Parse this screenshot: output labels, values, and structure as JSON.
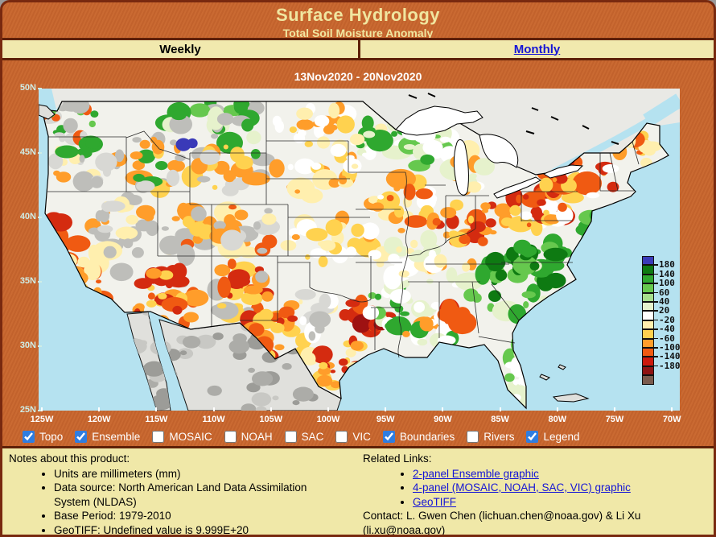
{
  "header": {
    "title": "Surface Hydrology",
    "subtitle": "Total Soil Moisture Anomaly"
  },
  "tabs": [
    {
      "label": "Weekly",
      "active": true
    },
    {
      "label": "Monthly",
      "active": false
    }
  ],
  "date_range": "13Nov2020 - 20Nov2020",
  "map": {
    "lat_labels": [
      "50N",
      "45N",
      "40N",
      "35N",
      "30N",
      "25N"
    ],
    "lon_labels": [
      "125W",
      "120W",
      "115W",
      "110W",
      "105W",
      "100W",
      "95W",
      "90W",
      "85W",
      "80W",
      "75W",
      "70W"
    ]
  },
  "legend": {
    "labels": [
      "180",
      "140",
      "100",
      "60",
      "40",
      "20",
      "-20",
      "-40",
      "-60",
      "-100",
      "-140",
      "-180"
    ],
    "colors": [
      "#3A3AB8",
      "#0E7A12",
      "#2FA82F",
      "#66C84E",
      "#A6DE8C",
      "#E6F2CC",
      "#FFFFFF",
      "#FFEFAE",
      "#FFD24F",
      "#FF9D2A",
      "#F05A12",
      "#CC1A0E",
      "#8E1414",
      "#7A5B4E"
    ]
  },
  "controls": [
    {
      "label": "Topo",
      "checked": true
    },
    {
      "label": "Ensemble",
      "checked": true
    },
    {
      "label": "MOSAIC",
      "checked": false
    },
    {
      "label": "NOAH",
      "checked": false
    },
    {
      "label": "SAC",
      "checked": false
    },
    {
      "label": "VIC",
      "checked": false
    },
    {
      "label": "Boundaries",
      "checked": true
    },
    {
      "label": "Rivers",
      "checked": false
    },
    {
      "label": "Legend",
      "checked": true
    }
  ],
  "notes": {
    "heading": "Notes about this product:",
    "items": [
      "Units are millimeters (mm)",
      "Data source: North American Land Data Assimilation System (NLDAS)",
      "Base Period: 1979-2010",
      "GeoTIFF: Undefined value is 9.999E+20"
    ]
  },
  "related": {
    "heading": "Related Links:",
    "links": [
      "2-panel Ensemble graphic",
      "4-panel (MOSAIC, NOAH, SAC, VIC) graphic",
      "GeoTIFF"
    ],
    "contact": "Contact: L. Gwen Chen (lichuan.chen@noaa.gov) & Li Xu (li.xu@noaa.gov)"
  },
  "colors": {
    "page_bg": "#C8672F",
    "panel_bg": "#F0E8A8",
    "border": "#78290F",
    "link": "#1515D6",
    "title_text": "#F0E6A0",
    "checkbox_accent": "#2F7DE0",
    "ocean": "#B5E2F0"
  }
}
